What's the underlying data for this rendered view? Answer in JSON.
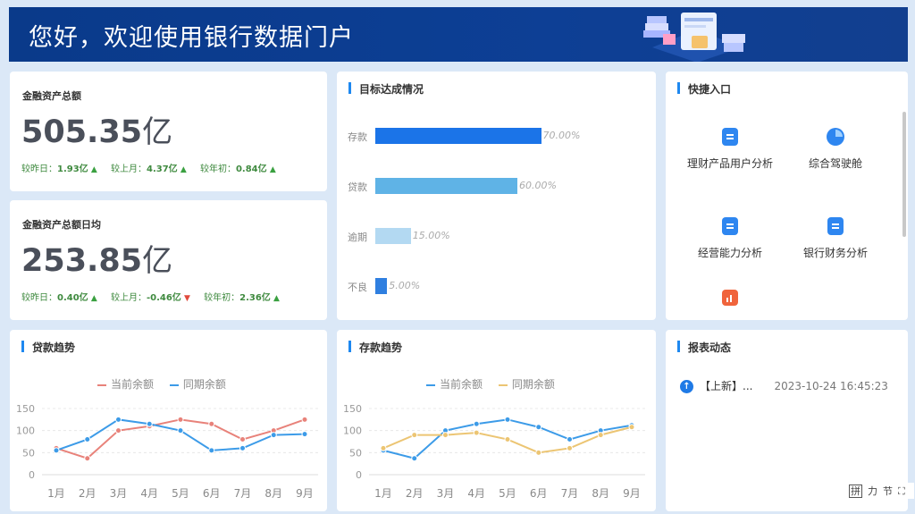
{
  "banner": {
    "title": "您好，欢迎使用银行数据门户"
  },
  "kpis": [
    {
      "label": "金融资产总额",
      "number": "505.35",
      "unit": "亿",
      "deltas": [
        {
          "label": "较昨日：",
          "value": "1.93亿",
          "dir": "up"
        },
        {
          "label": "较上月：",
          "value": "4.37亿",
          "dir": "up"
        },
        {
          "label": "较年初：",
          "value": "0.84亿",
          "dir": "up"
        }
      ]
    },
    {
      "label": "金融资产总额日均",
      "number": "253.85",
      "unit": "亿",
      "deltas": [
        {
          "label": "较昨日：",
          "value": "0.40亿",
          "dir": "up"
        },
        {
          "label": "较上月：",
          "value": "-0.46亿",
          "dir": "down"
        },
        {
          "label": "较年初：",
          "value": "2.36亿",
          "dir": "up"
        }
      ]
    }
  ],
  "goals": {
    "title": "目标达成情况",
    "items": [
      {
        "label": "存款",
        "pct_text": "70.00%",
        "value": 70,
        "color": "#1b74e8"
      },
      {
        "label": "贷款",
        "pct_text": "60.00%",
        "value": 60,
        "color": "#5fb3e6"
      },
      {
        "label": "逾期",
        "pct_text": "15.00%",
        "value": 15,
        "color": "#b3d9f2"
      },
      {
        "label": "不良",
        "pct_text": "5.00%",
        "value": 5,
        "color": "#2f7fe0"
      }
    ]
  },
  "quick": {
    "title": "快捷入口",
    "items": [
      {
        "label": "理财产品用户分析",
        "icon": "doc-icon"
      },
      {
        "label": "综合驾驶舱",
        "icon": "dashboard-icon"
      },
      {
        "label": "经营能力分析",
        "icon": "doc-icon"
      },
      {
        "label": "银行财务分析",
        "icon": "doc-icon"
      },
      {
        "label": "",
        "icon": "chart-icon"
      }
    ]
  },
  "chart_data": [
    {
      "type": "line",
      "title": "贷款趋势",
      "categories": [
        "1月",
        "2月",
        "3月",
        "4月",
        "5月",
        "6月",
        "7月",
        "8月",
        "9月"
      ],
      "ylim": [
        0,
        150
      ],
      "yticks": [
        0,
        50,
        100,
        150
      ],
      "legend_position": "top-center",
      "grid": true,
      "series": [
        {
          "name": "当前余额",
          "color": "#e8827a",
          "values": [
            60,
            37,
            100,
            110,
            125,
            115,
            80,
            100,
            125
          ]
        },
        {
          "name": "同期余额",
          "color": "#3c9be8",
          "values": [
            55,
            80,
            125,
            115,
            100,
            55,
            60,
            90,
            92
          ]
        }
      ]
    },
    {
      "type": "line",
      "title": "存款趋势",
      "categories": [
        "1月",
        "2月",
        "3月",
        "4月",
        "5月",
        "6月",
        "7月",
        "8月",
        "9月"
      ],
      "ylim": [
        0,
        150
      ],
      "yticks": [
        0,
        50,
        100,
        150
      ],
      "legend_position": "top-center",
      "grid": true,
      "series": [
        {
          "name": "当前余额",
          "color": "#3c9be8",
          "values": [
            55,
            37,
            100,
            115,
            125,
            108,
            80,
            100,
            112
          ]
        },
        {
          "name": "同期余额",
          "color": "#ecc573",
          "values": [
            60,
            90,
            90,
            95,
            80,
            50,
            60,
            90,
            108
          ]
        }
      ]
    }
  ],
  "reports": {
    "title": "报表动态",
    "items": [
      {
        "text": "【上新】...",
        "date": "2023-10-24 16:45:23"
      }
    ]
  },
  "ime": {
    "items": [
      "拼",
      "力",
      "节",
      "⛶"
    ]
  }
}
